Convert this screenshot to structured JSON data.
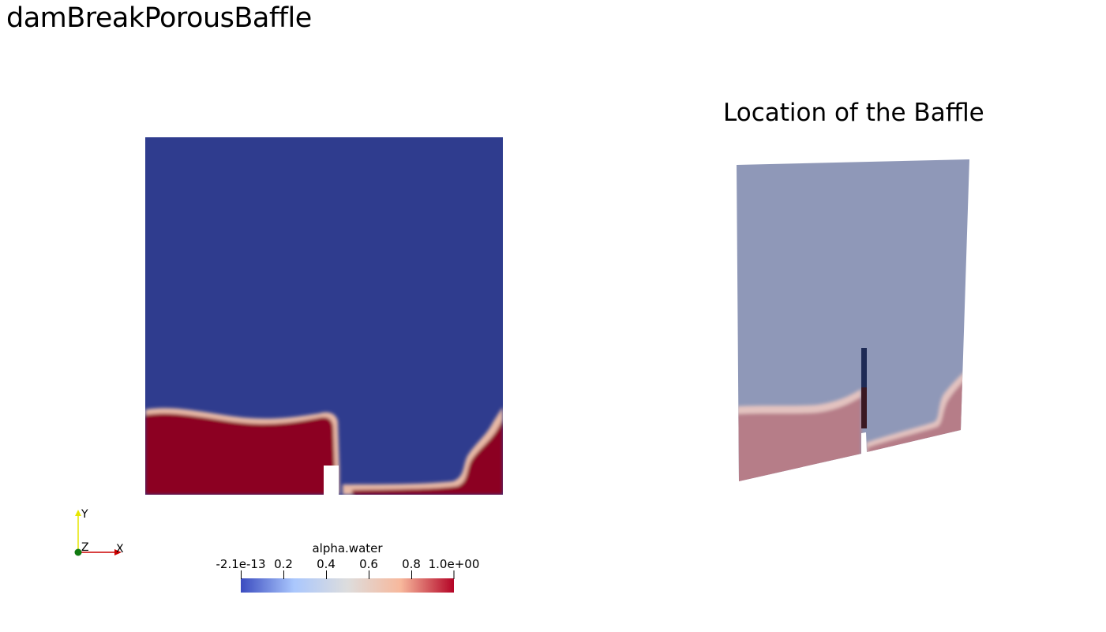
{
  "title": "damBreakPorousBaffle",
  "right_view": {
    "title": "Location of the Baffle"
  },
  "axes": {
    "x_label": "X",
    "y_label": "Y",
    "z_label": "Z"
  },
  "colorbar": {
    "title": "alpha.water",
    "ticks": [
      "-2.1e-13",
      "0.2",
      "0.4",
      "0.6",
      "0.8",
      "1.0e+00"
    ],
    "colors": [
      "#3b4cc0",
      "#aac7fd",
      "#dddddd",
      "#f7b89c",
      "#b40426"
    ]
  },
  "colors": {
    "air": "#2f3c8e",
    "water": "#8c0620",
    "air_translucent": "#8f98b8",
    "water_translucent": "#b67d88",
    "baffle": "#1e2a55"
  }
}
